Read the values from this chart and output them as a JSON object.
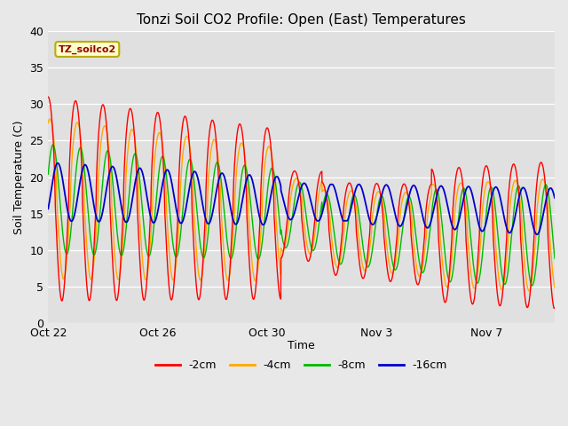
{
  "title": "Tonzi Soil CO2 Profile: Open (East) Temperatures",
  "xlabel": "Time",
  "ylabel": "Soil Temperature (C)",
  "ylim": [
    0,
    40
  ],
  "yticks": [
    0,
    5,
    10,
    15,
    20,
    25,
    30,
    35,
    40
  ],
  "legend_label": "TZ_soilco2",
  "legend_box_facecolor": "#ffffcc",
  "legend_box_edgecolor": "#bbaa00",
  "fig_facecolor": "#e8e8e8",
  "plot_facecolor": "#e0e0e0",
  "series": {
    "-2cm": {
      "color": "#ff0000"
    },
    "-4cm": {
      "color": "#ffaa00"
    },
    "-8cm": {
      "color": "#00bb00"
    },
    "-16cm": {
      "color": "#0000cc"
    }
  },
  "x_ticks_labels": [
    "Oct 22",
    "Oct 26",
    "Oct 30",
    "Nov 3",
    "Nov 7"
  ],
  "x_ticks_positions": [
    0,
    4,
    8,
    12,
    16
  ],
  "xlim": [
    0,
    18.5
  ]
}
